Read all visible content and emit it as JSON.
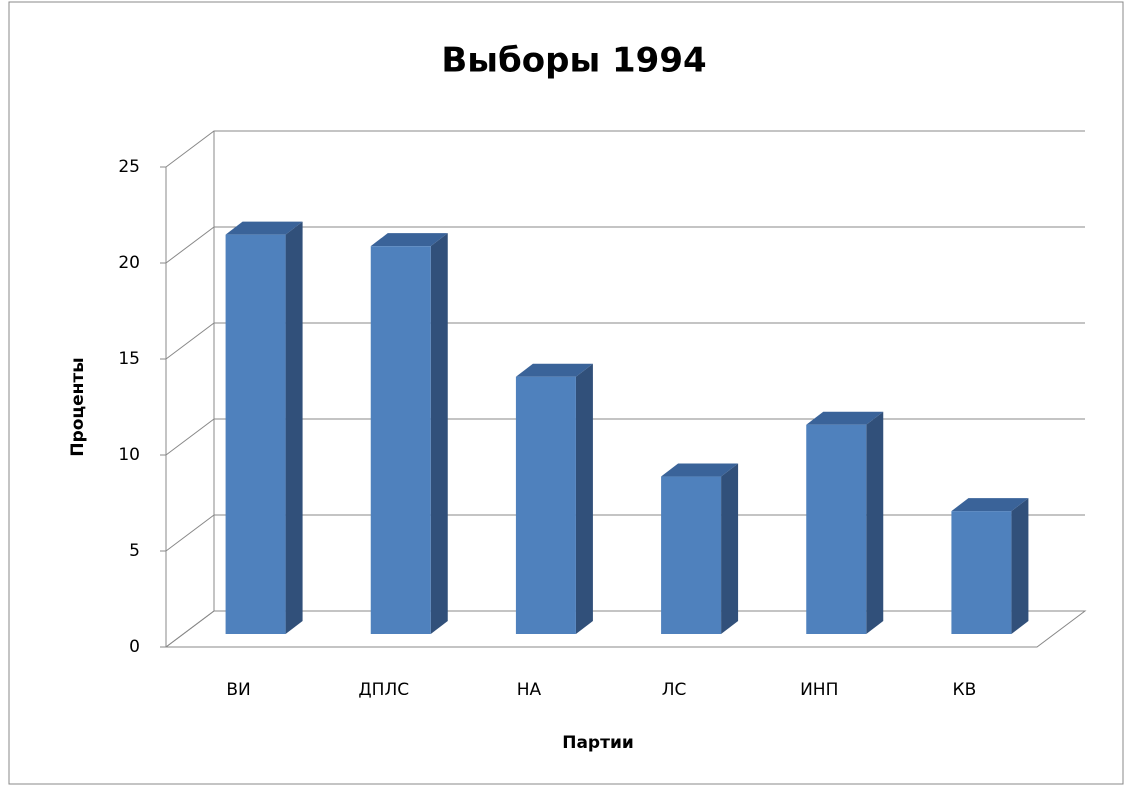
{
  "chart_data": {
    "type": "bar3d",
    "title": "Выборы 1994",
    "x_label": "Партии",
    "y_label": "Проценты",
    "categories": [
      "ВИ",
      "ДПЛС",
      "НА",
      "ЛС",
      "ИНП",
      "КВ"
    ],
    "values": [
      20.8,
      20.2,
      13.4,
      8.2,
      10.9,
      6.4
    ],
    "color": "#4f81bd",
    "ylim": [
      0,
      25
    ],
    "yticks": [
      0,
      5,
      10,
      15,
      20,
      25
    ],
    "grid": true
  }
}
